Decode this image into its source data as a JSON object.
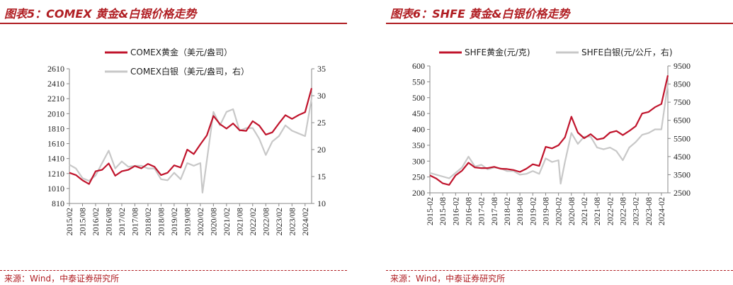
{
  "chart_data": [
    {
      "type": "line",
      "title": "图表5：COMEX 黄金&白银价格走势",
      "source": "来源：Wind，中泰证券研究所",
      "x_labels": [
        "2015/02",
        "2015/08",
        "2016/02",
        "2016/08",
        "2017/02",
        "2017/08",
        "2018/02",
        "2018/08",
        "2019/02",
        "2019/08",
        "2020/02",
        "2020/08",
        "2021/02",
        "2021/08",
        "2022/02",
        "2022/08",
        "2023/02",
        "2023/08",
        "2024/02"
      ],
      "ylim_left": [
        810,
        2610
      ],
      "yticks_left": [
        "810",
        "1010",
        "1210",
        "1410",
        "1610",
        "1810",
        "2010",
        "2210",
        "2410",
        "2610"
      ],
      "ylim_right": [
        10,
        35
      ],
      "yticks_right": [
        "10",
        "15",
        "20",
        "25",
        "30",
        "35"
      ],
      "legend_position": "top",
      "series": [
        {
          "name": "COMEX黄金（美元/盎司）",
          "axis": "left",
          "color": "#c0142c",
          "x": [
            "2015/02",
            "2015/05",
            "2015/08",
            "2015/11",
            "2016/02",
            "2016/05",
            "2016/08",
            "2016/11",
            "2017/02",
            "2017/05",
            "2017/08",
            "2017/11",
            "2018/02",
            "2018/05",
            "2018/08",
            "2018/11",
            "2019/02",
            "2019/05",
            "2019/08",
            "2019/11",
            "2020/02",
            "2020/05",
            "2020/08",
            "2020/11",
            "2021/02",
            "2021/05",
            "2021/08",
            "2021/11",
            "2022/02",
            "2022/05",
            "2022/08",
            "2022/11",
            "2023/02",
            "2023/05",
            "2023/08",
            "2023/11",
            "2024/02",
            "2024/05"
          ],
          "values": [
            1220,
            1190,
            1120,
            1070,
            1240,
            1260,
            1345,
            1180,
            1240,
            1260,
            1310,
            1280,
            1340,
            1300,
            1190,
            1220,
            1320,
            1290,
            1530,
            1470,
            1600,
            1720,
            1980,
            1870,
            1810,
            1880,
            1790,
            1780,
            1910,
            1850,
            1730,
            1760,
            1880,
            1990,
            1940,
            1990,
            2030,
            2350
          ]
        },
        {
          "name": "COMEX白银（美元/盎司，右）",
          "axis": "right",
          "color": "#c8c8c8",
          "x": [
            "2015/02",
            "2015/05",
            "2015/08",
            "2015/11",
            "2016/02",
            "2016/05",
            "2016/08",
            "2016/11",
            "2017/02",
            "2017/05",
            "2017/08",
            "2017/11",
            "2018/02",
            "2018/05",
            "2018/08",
            "2018/11",
            "2019/02",
            "2019/05",
            "2019/08",
            "2019/11",
            "2020/02",
            "2020/03",
            "2020/05",
            "2020/08",
            "2020/11",
            "2021/02",
            "2021/05",
            "2021/08",
            "2021/11",
            "2022/02",
            "2022/05",
            "2022/08",
            "2022/11",
            "2023/02",
            "2023/05",
            "2023/08",
            "2023/11",
            "2024/02",
            "2024/05"
          ],
          "values": [
            17.2,
            16.5,
            14.7,
            14.2,
            15.2,
            17.5,
            19.8,
            16.5,
            17.8,
            16.8,
            17.0,
            17.0,
            16.5,
            16.5,
            14.5,
            14.3,
            15.7,
            14.5,
            17.5,
            17.0,
            17.5,
            12.0,
            18.0,
            27.0,
            24.5,
            27.0,
            27.5,
            23.5,
            24.0,
            24.0,
            22.0,
            19.0,
            21.5,
            22.5,
            24.5,
            23.5,
            23.0,
            22.5,
            29.5
          ]
        }
      ]
    },
    {
      "type": "line",
      "title": "图表6：SHFE 黄金&白银价格走势",
      "source": "来源：Wind，中泰证券研究所",
      "x_labels": [
        "2015-02",
        "2015-08",
        "2016-02",
        "2016-08",
        "2017-02",
        "2017-08",
        "2018-02",
        "2018-08",
        "2019-02",
        "2019-08",
        "2020-02",
        "2020-08",
        "2021-02",
        "2021-08",
        "2022-02",
        "2022-08",
        "2023-02",
        "2023-08",
        "2024-02"
      ],
      "ylim_left": [
        200,
        600
      ],
      "yticks_left": [
        "200",
        "250",
        "300",
        "350",
        "400",
        "450",
        "500",
        "550",
        "600"
      ],
      "ylim_right": [
        2500,
        9500
      ],
      "yticks_right": [
        "2500",
        "3500",
        "4500",
        "5500",
        "6500",
        "7500",
        "8500",
        "9500"
      ],
      "legend_position": "top",
      "series": [
        {
          "name": "SHFE黄金(元/克)",
          "axis": "left",
          "color": "#c0142c",
          "x": [
            "2015-02",
            "2015-05",
            "2015-08",
            "2015-11",
            "2016-02",
            "2016-05",
            "2016-08",
            "2016-11",
            "2017-02",
            "2017-05",
            "2017-08",
            "2017-11",
            "2018-02",
            "2018-05",
            "2018-08",
            "2018-11",
            "2019-02",
            "2019-05",
            "2019-08",
            "2019-11",
            "2020-02",
            "2020-05",
            "2020-08",
            "2020-11",
            "2021-02",
            "2021-05",
            "2021-08",
            "2021-11",
            "2022-02",
            "2022-05",
            "2022-08",
            "2022-11",
            "2023-02",
            "2023-05",
            "2023-08",
            "2023-11",
            "2024-02",
            "2024-05"
          ],
          "values": [
            255,
            245,
            230,
            225,
            255,
            270,
            295,
            280,
            278,
            278,
            282,
            276,
            275,
            272,
            266,
            276,
            290,
            285,
            345,
            340,
            350,
            375,
            440,
            390,
            372,
            385,
            368,
            372,
            390,
            395,
            382,
            395,
            410,
            450,
            455,
            470,
            480,
            570
          ]
        },
        {
          "name": "SHFE白银(元/公斤，右)",
          "axis": "right",
          "color": "#c8c8c8",
          "x": [
            "2015-02",
            "2015-05",
            "2015-08",
            "2015-11",
            "2016-02",
            "2016-05",
            "2016-08",
            "2016-11",
            "2017-02",
            "2017-05",
            "2017-08",
            "2017-11",
            "2018-02",
            "2018-05",
            "2018-08",
            "2018-11",
            "2019-02",
            "2019-05",
            "2019-08",
            "2019-11",
            "2020-02",
            "2020-03",
            "2020-05",
            "2020-08",
            "2020-11",
            "2021-02",
            "2021-05",
            "2021-08",
            "2021-11",
            "2022-02",
            "2022-05",
            "2022-08",
            "2022-11",
            "2023-02",
            "2023-05",
            "2023-08",
            "2023-11",
            "2024-02",
            "2024-05"
          ],
          "values": [
            3600,
            3500,
            3400,
            3300,
            3600,
            3900,
            4500,
            3950,
            4050,
            3800,
            3900,
            3850,
            3700,
            3700,
            3500,
            3550,
            3700,
            3550,
            4400,
            4200,
            4300,
            3000,
            4200,
            5800,
            5200,
            5600,
            5600,
            5000,
            4900,
            5000,
            4800,
            4300,
            5000,
            5300,
            5700,
            5800,
            6000,
            6000,
            8500
          ]
        }
      ]
    }
  ]
}
